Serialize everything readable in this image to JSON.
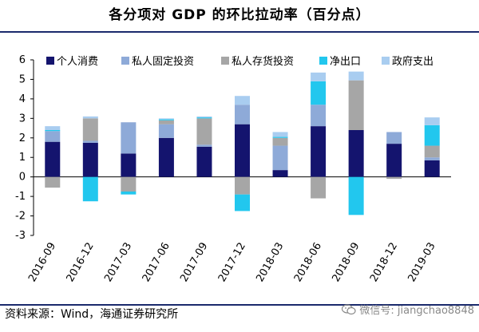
{
  "chart_data": {
    "type": "bar",
    "stacked": true,
    "title": "各分项对 GDP 的环比拉动率（百分点）",
    "xlabel": "",
    "ylabel": "",
    "ylim": [
      -3,
      6
    ],
    "yticks": [
      -3,
      -2,
      -1,
      0,
      1,
      2,
      3,
      4,
      5,
      6
    ],
    "categories": [
      "2016-09",
      "2016-12",
      "2017-03",
      "2017-06",
      "2017-09",
      "2017-12",
      "2018-03",
      "2018-06",
      "2018-09",
      "2018-12",
      "2019-03"
    ],
    "legend_position": "top",
    "series": [
      {
        "name": "个人消费",
        "color": "#14146e",
        "values": [
          1.8,
          1.75,
          1.2,
          2.0,
          1.55,
          2.7,
          0.35,
          2.6,
          2.4,
          1.7,
          0.85
        ]
      },
      {
        "name": "私人固定投资",
        "color": "#8eaad8",
        "values": [
          0.55,
          0.1,
          1.6,
          0.7,
          0.1,
          1.0,
          1.25,
          1.1,
          0.0,
          0.6,
          0.15
        ]
      },
      {
        "name": "私人存货投资",
        "color": "#a6a6a6",
        "values": [
          -0.55,
          1.15,
          -0.75,
          0.2,
          1.35,
          -0.9,
          0.4,
          -1.1,
          2.55,
          -0.1,
          0.6
        ]
      },
      {
        "name": "净出口",
        "color": "#22c7ee",
        "values": [
          0.05,
          -1.25,
          -0.15,
          0.05,
          0.05,
          -0.85,
          0.05,
          1.2,
          -1.95,
          0.0,
          1.05
        ]
      },
      {
        "name": "政府支出",
        "color": "#a9cdf0",
        "values": [
          0.2,
          0.1,
          0.0,
          0.05,
          0.05,
          0.45,
          0.25,
          0.45,
          0.45,
          0.0,
          0.4
        ]
      }
    ]
  },
  "footer": {
    "source": "资料来源：Wind，海通证券研究所",
    "watermark": "微信号: jiangchao8848"
  }
}
